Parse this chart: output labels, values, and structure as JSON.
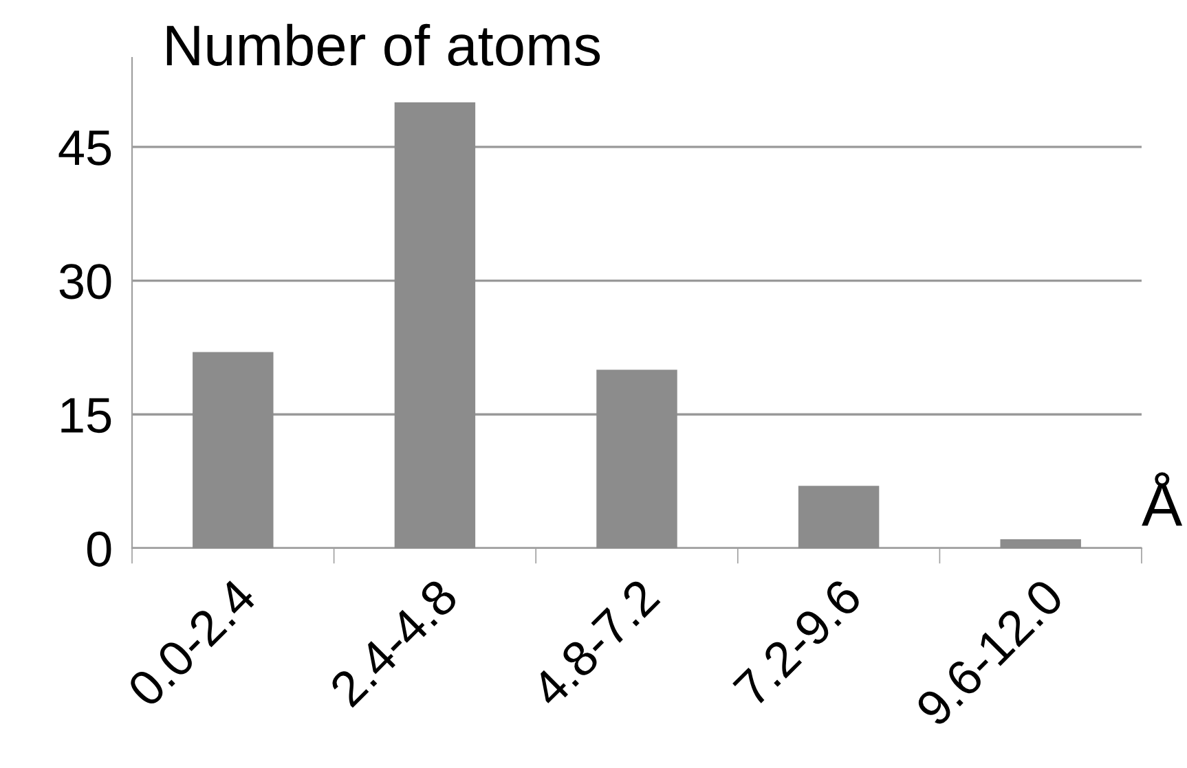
{
  "chart_data": {
    "type": "bar",
    "title": "Number of atoms",
    "xlabel": "Å",
    "categories": [
      "0.0-2.4",
      "2.4-4.8",
      "4.8-7.2",
      "7.2-9.6",
      "9.6-12.0"
    ],
    "values": [
      22,
      50,
      20,
      7,
      1
    ],
    "color": "#8c8c8c",
    "ylim": [
      0,
      55
    ],
    "yticks": [
      0,
      15,
      30,
      45
    ],
    "grid": "y"
  }
}
